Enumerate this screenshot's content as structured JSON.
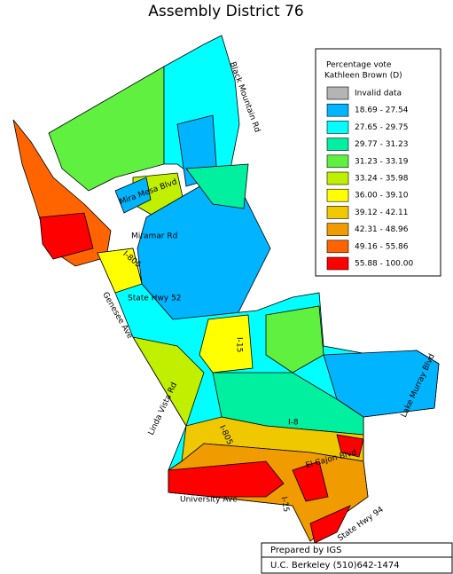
{
  "title": "Assembly District 76",
  "legend": {
    "title": [
      "Percentage vote",
      "Kathleen Brown (D)"
    ],
    "items": [
      {
        "label": "Invalid data",
        "color": "#b4b4b4"
      },
      {
        "label": "18.69 -  27.54",
        "color": "#00b4ff"
      },
      {
        "label": "27.65 -  29.75",
        "color": "#00ffff"
      },
      {
        "label": "29.77 -  31.23",
        "color": "#00f0a0"
      },
      {
        "label": "31.23 -  33.19",
        "color": "#60f040"
      },
      {
        "label": "33.24 -  35.98",
        "color": "#c0f000"
      },
      {
        "label": "36.00 -  39.10",
        "color": "#ffff00"
      },
      {
        "label": "39.12 -  42.11",
        "color": "#f0c800"
      },
      {
        "label": "42.31 -  48.96",
        "color": "#f09c00"
      },
      {
        "label": "49.16 -  55.86",
        "color": "#ff6400"
      },
      {
        "label": "55.88 - 100.00",
        "color": "#ff0000"
      }
    ]
  },
  "roads": [
    "Black Mountain Rd",
    "Mira Mesa Blvd",
    "Miramar Rd",
    "I-805",
    "State Hwy 52",
    "Genesee Ave",
    "I-15",
    "Linda Vista Rd",
    "I-805",
    "I-8",
    "Lake Murray Blvd",
    "University Ave",
    "I-15",
    "State Hwy 94",
    "El Cajon Blvd"
  ],
  "credits": [
    "Prepared by IGS",
    "U.C. Berkeley (510)642-1474"
  ]
}
